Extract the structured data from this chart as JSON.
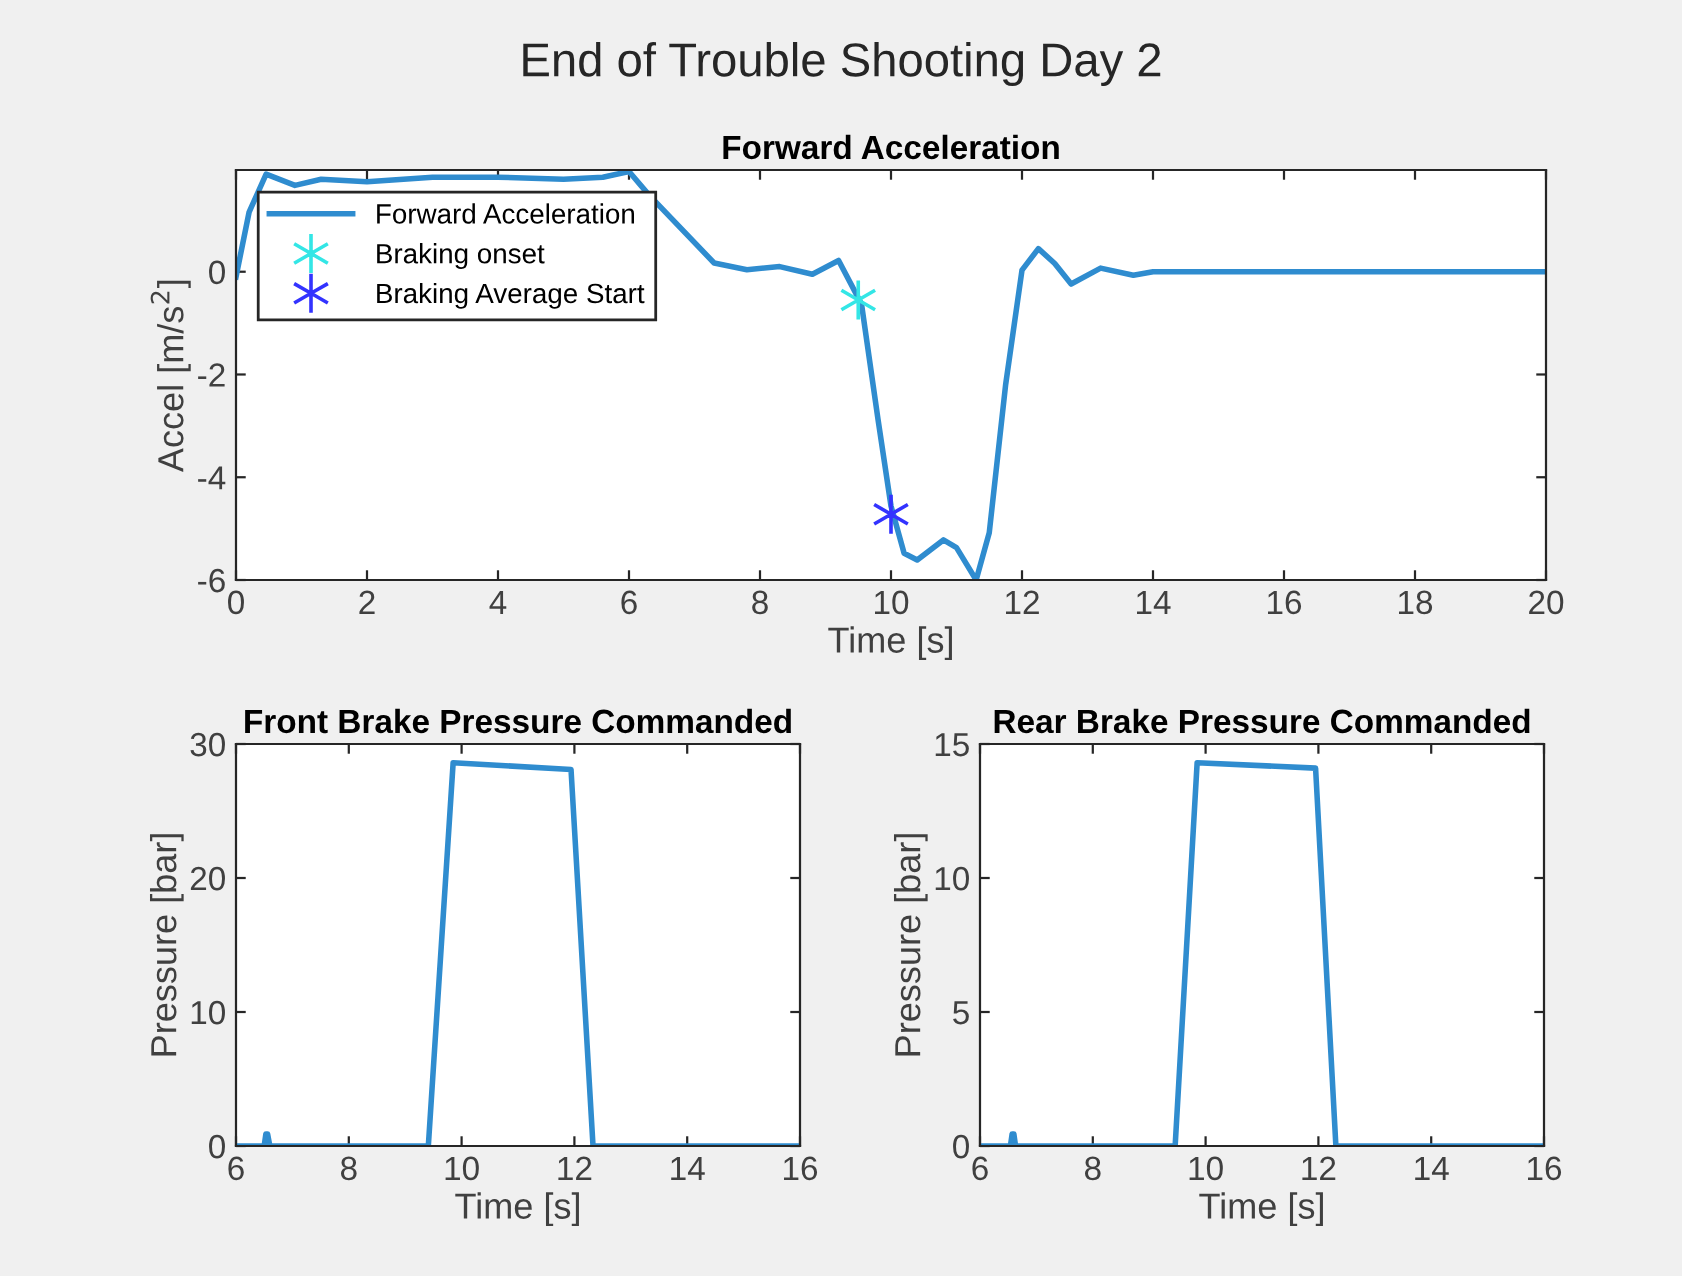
{
  "chart_data": [
    {
      "type": "line",
      "title": "Forward Acceleration",
      "xlabel": "Time [s]",
      "ylabel": "Accel [m/s$^{2}$]",
      "annotations": [
        "End of Trouble Shooting Day 2"
      ],
      "xlim": [
        0,
        20
      ],
      "ylim": [
        -6,
        1.98
      ],
      "xticks": [
        0,
        2,
        4,
        6,
        8,
        10,
        12,
        14,
        16,
        18,
        20
      ],
      "yticks": [
        -6,
        -4,
        -2,
        0
      ],
      "grid": false,
      "legend": "top left",
      "series": [
        {
          "name": "Forward Acceleration",
          "color": "#2f8ccf",
          "marker": "none",
          "line_style": "solid",
          "x": [
            0,
            0.2,
            0.46,
            0.9,
            1.3,
            2,
            3,
            4,
            5,
            5.6,
            6.0,
            6.3,
            7.3,
            7.8,
            8.3,
            8.8,
            9.2,
            9.55,
            9.8,
            10,
            10.2,
            10.4,
            10.8,
            11.0,
            11.3,
            11.5,
            11.75,
            12.0,
            12.25,
            12.5,
            12.75,
            13.2,
            13.7,
            14,
            16,
            18,
            20
          ],
          "values": [
            -0.1,
            1.16,
            1.9,
            1.68,
            1.8,
            1.75,
            1.84,
            1.84,
            1.8,
            1.84,
            1.95,
            1.5,
            0.17,
            0.04,
            0.1,
            -0.05,
            0.22,
            -0.63,
            -2.86,
            -4.56,
            -5.48,
            -5.61,
            -5.22,
            -5.37,
            -6.0,
            -5.08,
            -2.2,
            0.03,
            0.45,
            0.16,
            -0.24,
            0.07,
            -0.07,
            0,
            0,
            0,
            0
          ]
        },
        {
          "name": "Braking onset",
          "type": "scatter",
          "color": "#33e6e6",
          "marker": "cross",
          "x": [
            9.5
          ],
          "values": [
            -0.55
          ]
        },
        {
          "name": "Braking Average Start",
          "type": "scatter",
          "color": "#3333ff",
          "marker": "cross",
          "x": [
            10.0
          ],
          "values": [
            -4.72
          ]
        }
      ]
    },
    {
      "type": "line",
      "title": "Front Brake Pressure Commanded",
      "xlabel": "Time [s]",
      "ylabel": "Pressure [bar]",
      "xlim": [
        6,
        16
      ],
      "ylim": [
        0,
        30
      ],
      "xticks": [
        6,
        8,
        10,
        12,
        14,
        16
      ],
      "yticks": [
        0,
        10,
        20,
        30
      ],
      "grid": false,
      "series": [
        {
          "color": "#2f8ccf",
          "x": [
            6,
            6.5,
            6.53,
            6.56,
            6.6,
            9.41,
            9.85,
            11.94,
            12.33,
            16
          ],
          "values": [
            0,
            0,
            0.9,
            0.9,
            0,
            0,
            28.6,
            28.1,
            0,
            0
          ]
        }
      ]
    },
    {
      "type": "line",
      "title": "Rear Brake Pressure Commanded",
      "xlabel": "Time [s]",
      "ylabel": "Pressure [bar]",
      "xlim": [
        6,
        16
      ],
      "ylim": [
        0,
        15
      ],
      "xticks": [
        6,
        8,
        10,
        12,
        14,
        16
      ],
      "yticks": [
        0,
        5,
        10,
        15
      ],
      "grid": false,
      "series": [
        {
          "color": "#2f8ccf",
          "x": [
            6,
            6.54,
            6.57,
            6.6,
            6.63,
            9.46,
            9.85,
            11.95,
            12.31,
            16
          ],
          "values": [
            0,
            0,
            0.45,
            0.45,
            0,
            0,
            14.3,
            14.1,
            0,
            0
          ]
        }
      ]
    }
  ]
}
